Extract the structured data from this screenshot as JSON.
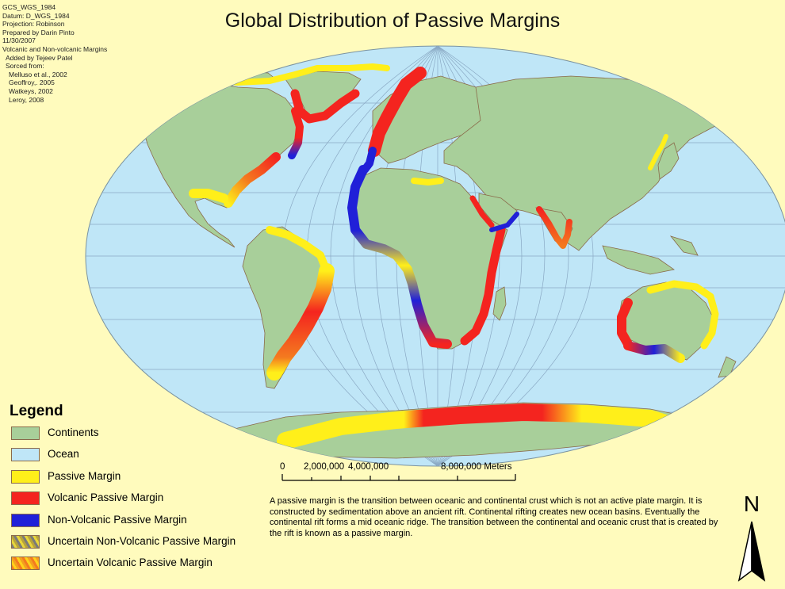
{
  "title": "Global Distribution of Passive Margins",
  "metadata": [
    "GCS_WGS_1984",
    "Datum: D_WGS_1984",
    "Projection: Robinson",
    "Prepared by Darin Pinto",
    "11/30/2007",
    "Volcanic and Non-volcanic Margins",
    "Added by Tejeev Patel",
    "Sorced from:",
    "Melluso et al., 2002",
    "Geoffroy,. 2005",
    "Watkeys, 2002",
    "Leroy, 2008"
  ],
  "legend": {
    "title": "Legend",
    "items": [
      {
        "label": "Continents",
        "color": "#a8cf9a"
      },
      {
        "label": "Ocean",
        "color": "#bfe6f7"
      },
      {
        "label": "Passive Margin",
        "color": "#ffef1a"
      },
      {
        "label": "Volcanic Passive Margin",
        "color": "#f4241f"
      },
      {
        "label": "Non-Volcanic Passive Margin",
        "color": "#2020d8"
      },
      {
        "label": "Uncertain Non-Volcanic Passive Margin",
        "color": "#b7a33c"
      },
      {
        "label": "Uncertain Volcanic Passive Margin",
        "color": "#f47a1f"
      }
    ]
  },
  "scale_bar": {
    "labels": [
      "0",
      "2,000,000",
      "4,000,000",
      "8,000,000 Meters"
    ]
  },
  "description": "A passive margin is the transition between oceanic and continental crust which is not an active plate margin. It is constructed by sedimentation above an ancient rift. Continental rifting creates  new ocean basins. Eventually the continental rift forms a mid oceanic ridge. The transition between the continental and oceanic crust that is created by the rift is known as a passive margin.",
  "north_arrow": {
    "label": "N"
  },
  "colors": {
    "background": "#fffbbd",
    "ocean": "#bfe6f7",
    "continent": "#a8cf9a",
    "passive": "#ffef1a",
    "volcanic": "#f4241f",
    "non_volcanic": "#2020d8"
  }
}
